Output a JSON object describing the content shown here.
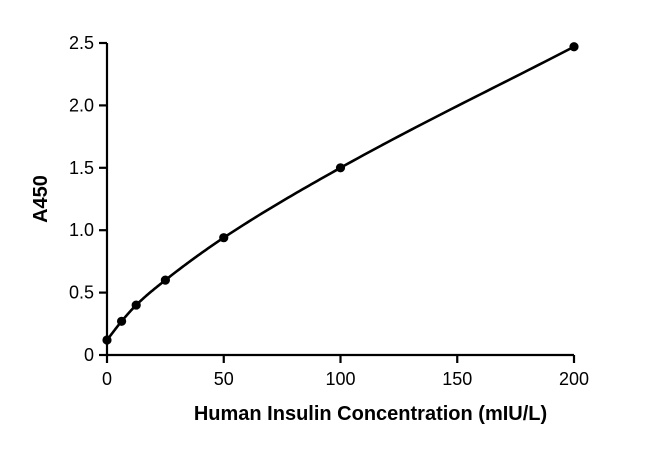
{
  "chart_data": {
    "type": "line",
    "title": "",
    "xlabel": "Human Insulin Concentration (mIU/L)",
    "ylabel": "A450",
    "xlim": [
      0,
      200
    ],
    "ylim": [
      0,
      2.5
    ],
    "x_ticks": [
      0,
      50,
      100,
      150,
      200
    ],
    "x_tick_labels": [
      "0",
      "50",
      "100",
      "150",
      "200"
    ],
    "y_ticks": [
      0,
      0.5,
      1.0,
      1.5,
      2.0,
      2.5
    ],
    "y_tick_labels": [
      "0",
      "0.5",
      "1.0",
      "1.5",
      "2.0",
      "2.5"
    ],
    "grid": false,
    "legend": "none",
    "series": [
      {
        "x": [
          0,
          6.25,
          12.5,
          25,
          50,
          100,
          200
        ],
        "y": [
          0.12,
          0.27,
          0.4,
          0.6,
          0.94,
          1.5,
          2.47
        ],
        "marker": "circle",
        "color": "#000000",
        "fit": "smooth-curve"
      }
    ]
  }
}
